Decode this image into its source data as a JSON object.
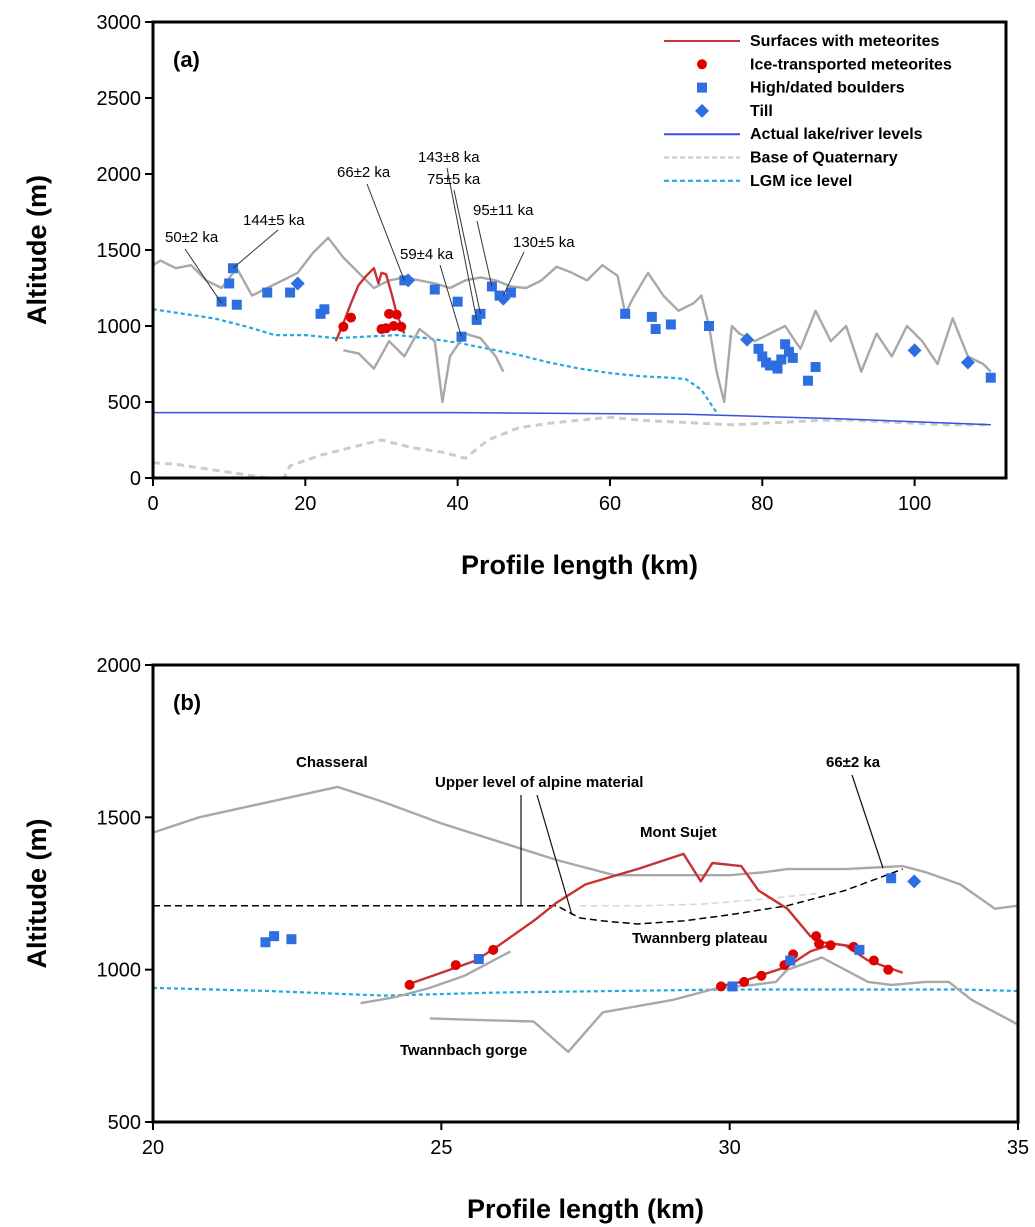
{
  "colors": {
    "meteorite_surface": "#c83232",
    "meteorite_point": "#e00000",
    "boulder": "#2d6fe0",
    "lake": "#3c4fe0",
    "quaternary": "#cccccc",
    "lgm": "#20a8e0",
    "terrain": "#a8a8a8",
    "alpine": "#000000"
  },
  "chart_data": [
    {
      "type": "line",
      "panel_label": "(a)",
      "xlabel": "Profile length (km)",
      "ylabel": "Altitude (m)",
      "xlim": [
        0,
        112
      ],
      "ylim": [
        0,
        3000
      ],
      "xticks": [
        0,
        20,
        40,
        60,
        80,
        100
      ],
      "yticks": [
        0,
        500,
        1000,
        1500,
        2000,
        2500,
        3000
      ],
      "grid": false,
      "legend_position": "top-right",
      "legend": [
        {
          "label": "Surfaces with meteorites",
          "marker": "line",
          "color": "#c83232"
        },
        {
          "label": "Ice-transported meteorites",
          "marker": "circle",
          "color": "#e00000"
        },
        {
          "label": "High/dated boulders",
          "marker": "square",
          "color": "#2d6fe0"
        },
        {
          "label": "Till",
          "marker": "diamond",
          "color": "#2d6fe0"
        },
        {
          "label": "Actual lake/river levels",
          "marker": "line",
          "color": "#3c4fe0"
        },
        {
          "label": "Base of Quaternary",
          "marker": "dashed",
          "color": "#cccccc"
        },
        {
          "label": "LGM ice level",
          "marker": "dashed",
          "color": "#20a8e0"
        }
      ],
      "series": [
        {
          "role": "terrain",
          "style": "line",
          "x": [
            0,
            1,
            3,
            5,
            7,
            9,
            11,
            13,
            15,
            17,
            19,
            21,
            23,
            25,
            27,
            29,
            31,
            33,
            35,
            37,
            39,
            41,
            43,
            45,
            47,
            49,
            51,
            53,
            55,
            57,
            59,
            61,
            62,
            63,
            65,
            67,
            69,
            71,
            72,
            73,
            74,
            75,
            76,
            77,
            79,
            81,
            83,
            85,
            87,
            88,
            89,
            91,
            93,
            95,
            97,
            99,
            101,
            103,
            105,
            107,
            109,
            110
          ],
          "y": [
            1400,
            1430,
            1380,
            1400,
            1300,
            1250,
            1380,
            1200,
            1250,
            1300,
            1350,
            1480,
            1580,
            1450,
            1350,
            1250,
            1300,
            1320,
            1300,
            1280,
            1250,
            1300,
            1320,
            1300,
            1260,
            1250,
            1300,
            1390,
            1350,
            1300,
            1400,
            1330,
            1080,
            1180,
            1350,
            1200,
            1100,
            1150,
            1200,
            1000,
            700,
            500,
            1000,
            950,
            900,
            950,
            1000,
            850,
            1100,
            1000,
            900,
            1000,
            700,
            950,
            800,
            1000,
            900,
            750,
            1050,
            800,
            750,
            700
          ]
        },
        {
          "role": "gorge",
          "style": "line",
          "x": [
            25,
            27,
            29,
            31,
            33,
            35,
            37,
            38,
            39,
            41,
            43,
            45,
            46
          ],
          "y": [
            840,
            820,
            720,
            900,
            800,
            980,
            900,
            500,
            800,
            950,
            920,
            800,
            700
          ]
        },
        {
          "role": "surfaces_with_meteorites",
          "style": "line",
          "x": [
            24,
            25,
            26,
            27,
            28,
            29,
            29.6,
            30,
            30.6,
            31.4,
            32,
            33
          ],
          "y": [
            900,
            1020,
            1150,
            1270,
            1330,
            1380,
            1280,
            1350,
            1340,
            1200,
            1080,
            950
          ]
        },
        {
          "role": "ice_transported_meteorites",
          "style": "circle",
          "x": [
            25,
            26,
            30,
            30.6,
            31,
            31.6,
            32,
            32.6
          ],
          "y": [
            995,
            1055,
            980,
            985,
            1080,
            1000,
            1075,
            995
          ]
        },
        {
          "role": "high_dated_boulders",
          "style": "square",
          "x": [
            9,
            10,
            10.5,
            11,
            15,
            18,
            22,
            22.5,
            33,
            37,
            40,
            40.5,
            42.5,
            43,
            44.5,
            45.5,
            47,
            62,
            65.5,
            66,
            68,
            73,
            79.5,
            80,
            80.5,
            81,
            81.5,
            82,
            82.5,
            83,
            83.5,
            84,
            86,
            87,
            110
          ],
          "y": [
            1160,
            1280,
            1380,
            1140,
            1220,
            1220,
            1080,
            1110,
            1300,
            1240,
            1160,
            930,
            1040,
            1080,
            1260,
            1200,
            1220,
            1080,
            1060,
            980,
            1010,
            1000,
            850,
            800,
            760,
            740,
            740,
            720,
            780,
            880,
            830,
            790,
            640,
            730,
            660
          ]
        },
        {
          "role": "till",
          "style": "diamond",
          "x": [
            19,
            33.5,
            46,
            78,
            100,
            107
          ],
          "y": [
            1280,
            1300,
            1180,
            910,
            840,
            760
          ]
        },
        {
          "role": "actual_lake_river_levels",
          "style": "line",
          "x": [
            0,
            40,
            70,
            90,
            110
          ],
          "y": [
            430,
            430,
            420,
            390,
            350
          ]
        },
        {
          "role": "base_of_quaternary",
          "style": "dashed",
          "x": [
            0,
            3,
            7,
            11,
            15,
            17,
            18,
            22,
            26,
            30,
            34,
            38,
            41,
            44,
            48,
            52,
            56,
            60,
            64,
            68,
            72,
            76,
            80,
            84,
            88,
            92,
            96,
            100,
            104,
            108,
            110
          ],
          "y": [
            100,
            90,
            60,
            30,
            0,
            -20,
            80,
            150,
            200,
            250,
            200,
            170,
            130,
            250,
            330,
            360,
            380,
            400,
            380,
            370,
            360,
            350,
            360,
            370,
            380,
            380,
            370,
            360,
            350,
            350,
            350
          ]
        },
        {
          "role": "lgm_ice_level",
          "style": "dashed",
          "x": [
            0,
            4,
            8,
            12,
            16,
            20,
            24,
            28,
            32,
            36,
            40,
            44,
            48,
            52,
            56,
            60,
            64,
            68,
            70,
            72,
            74
          ],
          "y": [
            1110,
            1080,
            1050,
            1000,
            940,
            940,
            920,
            930,
            940,
            920,
            890,
            850,
            810,
            760,
            720,
            690,
            670,
            660,
            650,
            580,
            430
          ]
        }
      ],
      "annotations": [
        {
          "text": "50±2 ka",
          "x": 9,
          "y": 1150
        },
        {
          "text": "144±5 ka",
          "x": 10.5,
          "y": 1380
        },
        {
          "text": "66±2 ka",
          "x": 33,
          "y": 1300
        },
        {
          "text": "143±8 ka",
          "x": 42.5,
          "y": 1040
        },
        {
          "text": "75±5 ka",
          "x": 43,
          "y": 1080
        },
        {
          "text": "59±4 ka",
          "x": 40.5,
          "y": 930
        },
        {
          "text": "95±11 ka",
          "x": 44.5,
          "y": 1260
        },
        {
          "text": "130±5 ka",
          "x": 46,
          "y": 1200
        }
      ]
    },
    {
      "type": "line",
      "panel_label": "(b)",
      "xlabel": "Profile length (km)",
      "ylabel": "Altitude (m)",
      "xlim": [
        20,
        35
      ],
      "ylim": [
        500,
        2000
      ],
      "xticks": [
        20,
        25,
        30,
        35
      ],
      "yticks": [
        500,
        1000,
        1500,
        2000
      ],
      "grid": false,
      "series": [
        {
          "role": "terrain",
          "style": "line",
          "x": [
            20,
            20.8,
            23.2,
            24,
            25,
            26,
            27,
            27.6,
            28,
            30,
            30.6,
            31,
            32,
            33,
            33.4,
            34,
            34.6,
            35
          ],
          "y": [
            1450,
            1500,
            1600,
            1550,
            1480,
            1420,
            1360,
            1330,
            1310,
            1310,
            1320,
            1330,
            1330,
            1340,
            1320,
            1280,
            1200,
            1210
          ]
        },
        {
          "role": "gorge",
          "style": "line",
          "x": [
            23.6,
            24.2,
            24.8,
            25.4,
            25.8,
            26.2
          ],
          "y": [
            890,
            910,
            940,
            980,
            1020,
            1060
          ]
        },
        {
          "role": "gorge",
          "style": "line",
          "x": [
            24.8,
            25.6,
            26.6,
            27.2,
            27.8,
            28.4,
            29,
            29.8,
            30.4,
            30.8,
            31,
            31.6,
            32,
            32.4,
            32.8,
            33.4,
            33.8,
            34.2,
            35
          ],
          "y": [
            840,
            835,
            830,
            730,
            860,
            880,
            900,
            940,
            950,
            960,
            1000,
            1040,
            1000,
            960,
            950,
            960,
            960,
            900,
            820
          ]
        },
        {
          "role": "surfaces_with_meteorites",
          "style": "line",
          "x": [
            24.4,
            25,
            25.6,
            26,
            26.6,
            27,
            27.5,
            28.4,
            29.2,
            29.5,
            29.7,
            30.2,
            30.5,
            31,
            31.4,
            31.6,
            32,
            32.4,
            33
          ],
          "y": [
            950,
            990,
            1030,
            1080,
            1160,
            1220,
            1280,
            1330,
            1380,
            1290,
            1350,
            1340,
            1260,
            1200,
            1110,
            1090,
            1080,
            1030,
            990
          ]
        },
        {
          "role": "surfaces_with_meteorites",
          "style": "line",
          "x": [
            29.8,
            30.2,
            30.6,
            31,
            31.4,
            31.8,
            32.2
          ],
          "y": [
            945,
            960,
            985,
            1010,
            1060,
            1085,
            1075
          ]
        },
        {
          "role": "ice_transported_meteorites",
          "style": "circle",
          "x": [
            24.45,
            25.25,
            25.9,
            29.85,
            30.25,
            30.55,
            30.95,
            31.1,
            31.5,
            31.55,
            31.75,
            32.15,
            32.5,
            32.75
          ],
          "y": [
            950,
            1015,
            1065,
            945,
            960,
            980,
            1015,
            1050,
            1110,
            1085,
            1080,
            1075,
            1030,
            1000
          ]
        },
        {
          "role": "high_dated_boulders",
          "style": "square",
          "x": [
            21.95,
            22.1,
            22.4,
            25.65,
            30.05,
            31.05,
            32.25,
            32.8
          ],
          "y": [
            1090,
            1110,
            1100,
            1035,
            945,
            1030,
            1065,
            1300
          ]
        },
        {
          "role": "till",
          "style": "diamond",
          "x": [
            33.2
          ],
          "y": [
            1290
          ]
        },
        {
          "role": "alpine_upper_level",
          "style": "dashed",
          "x": [
            20,
            27,
            27.4,
            27.8,
            28.4,
            29.2,
            30,
            31,
            32,
            33
          ],
          "y": [
            1210,
            1210,
            1170,
            1160,
            1150,
            1160,
            1180,
            1210,
            1260,
            1330
          ]
        },
        {
          "role": "alpine_upper_level_light",
          "style": "dashed",
          "x": [
            27.4,
            28.5,
            29.5,
            30.5,
            31.5
          ],
          "y": [
            1210,
            1210,
            1215,
            1230,
            1250
          ]
        },
        {
          "role": "lgm_ice_level",
          "style": "dashed",
          "x": [
            20,
            22,
            24,
            26,
            28,
            30,
            32,
            34,
            35
          ],
          "y": [
            940,
            930,
            915,
            925,
            930,
            935,
            935,
            935,
            930
          ]
        }
      ],
      "annotations": [
        {
          "text": "Chasseral",
          "x": 23.2,
          "y": 1600
        },
        {
          "text": "Upper level of alpine material",
          "x": 27.2,
          "y": 1210
        },
        {
          "text": "Mont Sujet",
          "x": 29.2,
          "y": 1380
        },
        {
          "text": "66±2 ka",
          "x": 32.8,
          "y": 1300
        },
        {
          "text": "Twannberg plateau",
          "x": 29.8,
          "y": 1150
        },
        {
          "text": "Twannbach gorge",
          "x": 27.2,
          "y": 730
        }
      ]
    }
  ]
}
